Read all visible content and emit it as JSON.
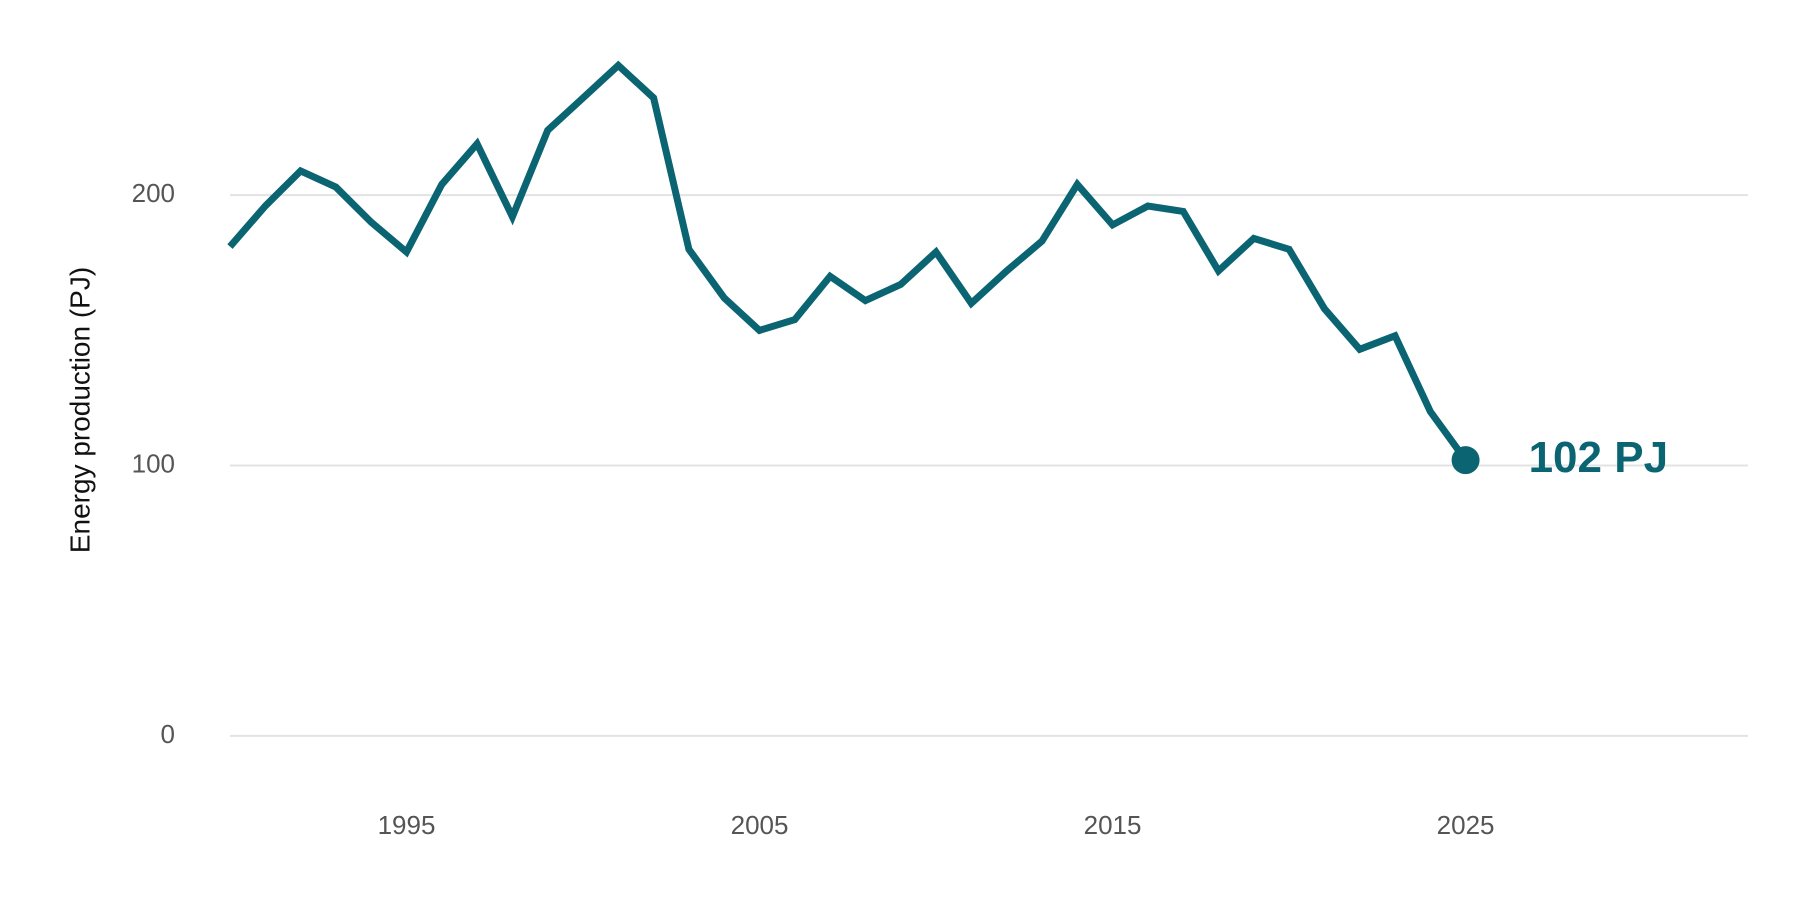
{
  "chart_data": {
    "type": "line",
    "ylabel": "Energy production (PJ)",
    "xlabel": "",
    "title": "",
    "xlim": [
      1990,
      2033
    ],
    "ylim": [
      -20,
      250
    ],
    "yticks": [
      0,
      100,
      200
    ],
    "xticks": [
      1995,
      2005,
      2015,
      2025
    ],
    "grid": "horizontal",
    "line_color": "#0b6472",
    "grid_color": "#e3e3e3",
    "series": [
      {
        "x": [
          1990,
          1991,
          1992,
          1993,
          1994,
          1995,
          1996,
          1997,
          1998,
          1999,
          2000,
          2001,
          2002,
          2003,
          2004,
          2005,
          2006,
          2007,
          2008,
          2009,
          2010,
          2011,
          2012,
          2013,
          2014,
          2015,
          2016,
          2017,
          2018,
          2019,
          2020,
          2021,
          2022,
          2023,
          2024,
          2025
        ],
        "values": [
          181,
          196,
          209,
          203,
          190,
          179,
          204,
          219,
          192,
          224,
          236,
          248,
          236,
          180,
          162,
          150,
          154,
          170,
          161,
          167,
          179,
          160,
          172,
          183,
          204,
          189,
          196,
          194,
          172,
          184,
          180,
          158,
          143,
          148,
          120,
          102
        ]
      }
    ],
    "end_annotation": "102 PJ"
  }
}
